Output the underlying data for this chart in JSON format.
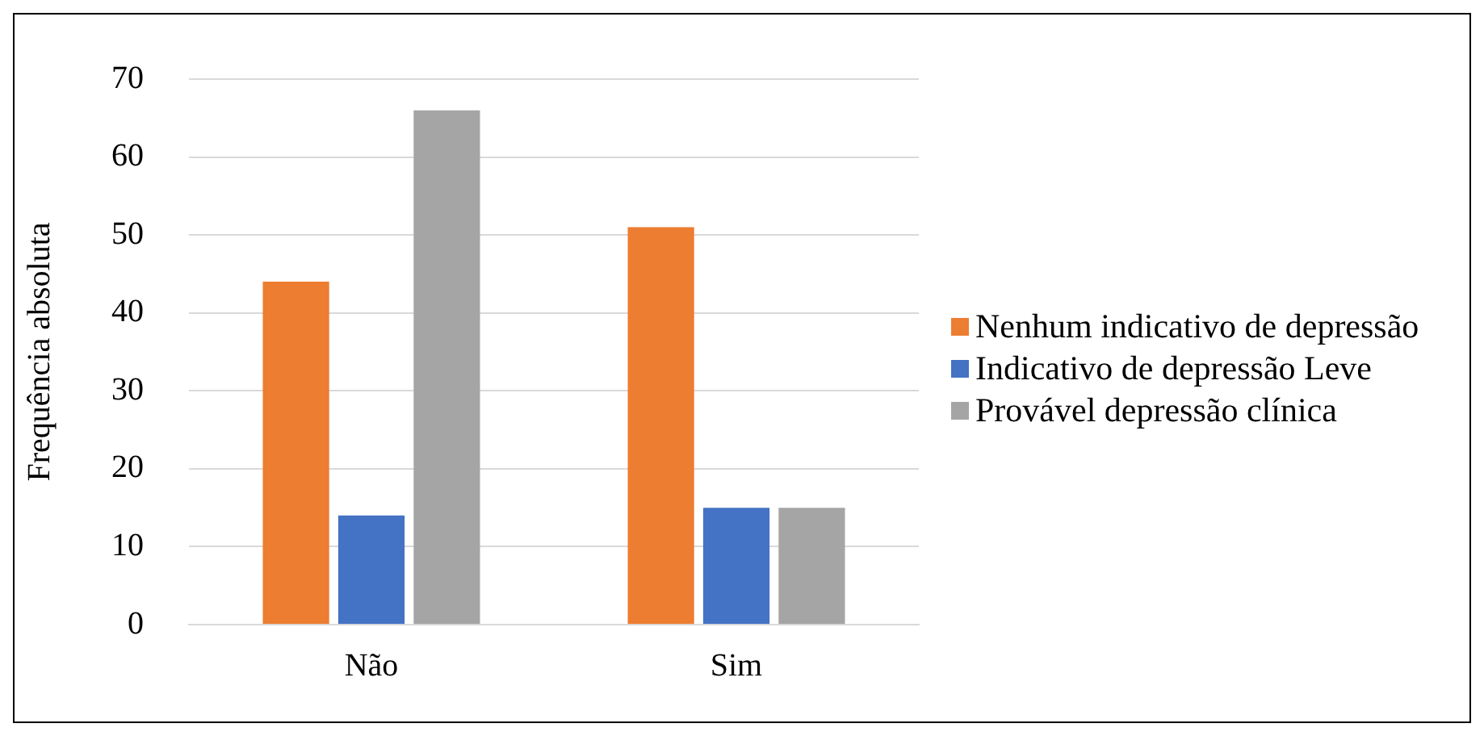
{
  "chart_data": {
    "type": "bar",
    "ylabel": "Frequência absoluta",
    "categories": [
      "Não",
      "Sim"
    ],
    "series": [
      {
        "name": "Nenhum indicativo de depressão",
        "color": "#ed7d31",
        "values": [
          44,
          51
        ]
      },
      {
        "name": "Indicativo de depressão Leve",
        "color": "#4472c4",
        "values": [
          14,
          15
        ]
      },
      {
        "name": "Provável depressão clínica",
        "color": "#a5a5a5",
        "values": [
          66,
          15
        ]
      }
    ],
    "ylim": [
      0,
      70
    ],
    "yticks": [
      0,
      10,
      20,
      30,
      40,
      50,
      60,
      70
    ],
    "grid": "y",
    "legend": "right"
  }
}
